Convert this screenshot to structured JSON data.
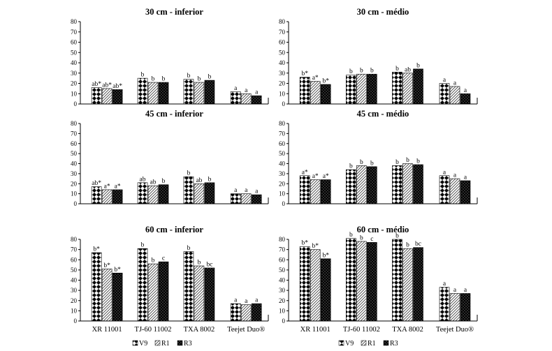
{
  "colors": {
    "V9": "#ffffff",
    "R1": "#ffffff",
    "R3": "#000000",
    "axis": "#000000"
  },
  "legend": [
    {
      "key": "V9",
      "label": "V9",
      "pattern": "diamond"
    },
    {
      "key": "R1",
      "label": "R1",
      "pattern": "hatch"
    },
    {
      "key": "R3",
      "label": "R3",
      "pattern": "dots"
    }
  ],
  "chart_data": [
    {
      "type": "bar",
      "title": "30 cm  -  inferior",
      "ylim": [
        0,
        80
      ],
      "yticks": [
        0,
        10,
        20,
        30,
        40,
        50,
        60,
        70,
        80
      ],
      "categories": [
        "",
        "",
        "",
        ""
      ],
      "series": [
        {
          "name": "V9",
          "values": [
            16,
            25,
            24,
            12
          ]
        },
        {
          "name": "R1",
          "values": [
            15,
            21,
            21,
            10
          ]
        },
        {
          "name": "R3",
          "values": [
            14,
            21,
            23,
            8
          ]
        }
      ],
      "labels": [
        [
          "ab*",
          "ab*",
          "ab*"
        ],
        [
          "b",
          "b",
          "b"
        ],
        [
          "b",
          "b",
          "b"
        ],
        [
          "a",
          "a",
          "a"
        ]
      ],
      "grid": false,
      "legend_position": "bottom"
    },
    {
      "type": "bar",
      "title": "30 cm  -  médio",
      "ylim": [
        0,
        80
      ],
      "yticks": [
        0,
        10,
        20,
        30,
        40,
        50,
        60,
        70,
        80
      ],
      "categories": [
        "",
        "",
        "",
        ""
      ],
      "series": [
        {
          "name": "V9",
          "values": [
            26,
            28,
            31,
            20
          ]
        },
        {
          "name": "R1",
          "values": [
            22,
            29,
            30,
            17
          ]
        },
        {
          "name": "R3",
          "values": [
            19,
            29,
            34,
            10
          ]
        }
      ],
      "labels": [
        [
          "b*",
          "a*",
          "b*"
        ],
        [
          "b",
          "b",
          "b"
        ],
        [
          "b",
          "ab",
          "b"
        ],
        [
          "a",
          "a",
          "a"
        ]
      ],
      "grid": false,
      "legend_position": "bottom"
    },
    {
      "type": "bar",
      "title": "45 cm  -  inferior",
      "ylim": [
        0,
        80
      ],
      "yticks": [
        0,
        10,
        20,
        30,
        40,
        50,
        60,
        70,
        80
      ],
      "categories": [
        "",
        "",
        "",
        ""
      ],
      "series": [
        {
          "name": "V9",
          "values": [
            17,
            21,
            27,
            10
          ]
        },
        {
          "name": "R1",
          "values": [
            14,
            18,
            20,
            10
          ]
        },
        {
          "name": "R3",
          "values": [
            14,
            19,
            21,
            9
          ]
        }
      ],
      "labels": [
        [
          "ab*",
          "a*",
          "a*"
        ],
        [
          "ab",
          "ab",
          "b"
        ],
        [
          "b",
          "ab",
          "b"
        ],
        [
          "a",
          "a",
          "a"
        ]
      ],
      "grid": false,
      "legend_position": "bottom"
    },
    {
      "type": "bar",
      "title": "45 cm  -  médio",
      "ylim": [
        0,
        80
      ],
      "yticks": [
        0,
        10,
        20,
        30,
        40,
        50,
        60,
        70,
        80
      ],
      "categories": [
        "",
        "",
        "",
        ""
      ],
      "series": [
        {
          "name": "V9",
          "values": [
            28,
            34,
            38,
            28
          ]
        },
        {
          "name": "R1",
          "values": [
            24,
            38,
            40,
            25
          ]
        },
        {
          "name": "R3",
          "values": [
            24,
            37,
            39,
            23
          ]
        }
      ],
      "labels": [
        [
          "a*",
          "a*",
          "a*"
        ],
        [
          "b",
          "b",
          "b"
        ],
        [
          "b",
          "b",
          "b"
        ],
        [
          "a",
          "a",
          "a"
        ]
      ],
      "grid": false,
      "legend_position": "bottom"
    },
    {
      "type": "bar",
      "title": "60 cm  -  inferior",
      "ylim": [
        0,
        80
      ],
      "yticks": [
        0,
        10,
        20,
        30,
        40,
        50,
        60,
        70,
        80
      ],
      "categories": [
        "XR 11001",
        "TJ-60 11002",
        "TXA 8002",
        "Teejet Duo®"
      ],
      "series": [
        {
          "name": "V9",
          "values": [
            67,
            71,
            68,
            17
          ]
        },
        {
          "name": "R1",
          "values": [
            51,
            56,
            54,
            16
          ]
        },
        {
          "name": "R3",
          "values": [
            47,
            58,
            52,
            17
          ]
        }
      ],
      "labels": [
        [
          "b*",
          "b*",
          "b*"
        ],
        [
          "b",
          "b",
          "c"
        ],
        [
          "b",
          "b",
          "bc"
        ],
        [
          "a",
          "a",
          "a"
        ]
      ],
      "grid": false,
      "legend_position": "bottom"
    },
    {
      "type": "bar",
      "title": "60 cm  -  médio",
      "ylim": [
        0,
        80
      ],
      "yticks": [
        0,
        10,
        20,
        30,
        40,
        50,
        60,
        70,
        80
      ],
      "categories": [
        "XR 11001",
        "TJ-60 11002",
        "TXA 8002",
        "Teejet Duo®"
      ],
      "series": [
        {
          "name": "V9",
          "values": [
            73,
            81,
            80,
            33
          ]
        },
        {
          "name": "R1",
          "values": [
            70,
            78,
            71,
            27
          ]
        },
        {
          "name": "R3",
          "values": [
            61,
            77,
            72,
            27
          ]
        }
      ],
      "labels": [
        [
          "b*",
          "b*",
          "b*"
        ],
        [
          "b",
          "b",
          "c"
        ],
        [
          "b",
          "b",
          "bc"
        ],
        [
          "a",
          "a",
          "a"
        ]
      ],
      "grid": false,
      "legend_position": "bottom"
    }
  ]
}
